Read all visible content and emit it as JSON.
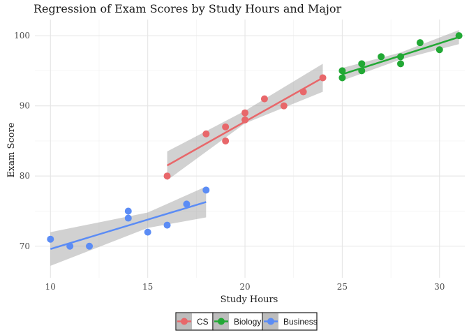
{
  "chart_data": {
    "type": "scatter",
    "title": "Regression of Exam Scores by Study Hours and Major",
    "xlabel": "Study Hours",
    "ylabel": "Exam Score",
    "xlim": [
      9.2,
      31.3
    ],
    "ylim": [
      65.5,
      102.3
    ],
    "x_ticks": [
      10,
      15,
      20,
      25,
      30
    ],
    "y_ticks": [
      70,
      80,
      90,
      100
    ],
    "grid": true,
    "legend_position": "bottom",
    "series": [
      {
        "name": "CS",
        "color": "#E8676A",
        "points": [
          {
            "x": 16,
            "y": 80
          },
          {
            "x": 18,
            "y": 86
          },
          {
            "x": 19,
            "y": 87
          },
          {
            "x": 19,
            "y": 85
          },
          {
            "x": 20,
            "y": 89
          },
          {
            "x": 20,
            "y": 88
          },
          {
            "x": 21,
            "y": 91
          },
          {
            "x": 22,
            "y": 90
          },
          {
            "x": 23,
            "y": 92
          },
          {
            "x": 24,
            "y": 94
          }
        ],
        "fit": {
          "x_start": 16,
          "x_end": 24,
          "y_start": 81.5,
          "y_end": 94.0
        },
        "ci_upper": [
          {
            "x": 16,
            "y": 83.5
          },
          {
            "x": 20,
            "y": 89.3
          },
          {
            "x": 24,
            "y": 96.0
          }
        ],
        "ci_lower": [
          {
            "x": 16,
            "y": 79.4
          },
          {
            "x": 20,
            "y": 87.5
          },
          {
            "x": 24,
            "y": 92.0
          }
        ]
      },
      {
        "name": "Biology",
        "color": "#22A835",
        "points": [
          {
            "x": 25,
            "y": 95
          },
          {
            "x": 25,
            "y": 94
          },
          {
            "x": 26,
            "y": 96
          },
          {
            "x": 26,
            "y": 95
          },
          {
            "x": 27,
            "y": 97
          },
          {
            "x": 28,
            "y": 97
          },
          {
            "x": 28,
            "y": 96
          },
          {
            "x": 29,
            "y": 99
          },
          {
            "x": 30,
            "y": 98
          },
          {
            "x": 31,
            "y": 100
          }
        ],
        "fit": {
          "x_start": 25,
          "x_end": 31,
          "y_start": 94.5,
          "y_end": 99.8
        },
        "ci_upper": [
          {
            "x": 25,
            "y": 95.4
          },
          {
            "x": 28,
            "y": 97.6
          },
          {
            "x": 31,
            "y": 100.8
          }
        ],
        "ci_lower": [
          {
            "x": 25,
            "y": 93.6
          },
          {
            "x": 28,
            "y": 96.6
          },
          {
            "x": 31,
            "y": 98.8
          }
        ]
      },
      {
        "name": "Business",
        "color": "#5B8CF5",
        "points": [
          {
            "x": 10,
            "y": 71
          },
          {
            "x": 11,
            "y": 70
          },
          {
            "x": 12,
            "y": 70
          },
          {
            "x": 14,
            "y": 75
          },
          {
            "x": 14,
            "y": 74
          },
          {
            "x": 15,
            "y": 72
          },
          {
            "x": 16,
            "y": 73
          },
          {
            "x": 17,
            "y": 76
          },
          {
            "x": 18,
            "y": 78
          }
        ],
        "fit": {
          "x_start": 10,
          "x_end": 18,
          "y_start": 69.6,
          "y_end": 76.3
        },
        "ci_upper": [
          {
            "x": 10,
            "y": 72.0
          },
          {
            "x": 15,
            "y": 74.8
          },
          {
            "x": 18,
            "y": 78.5
          }
        ],
        "ci_lower": [
          {
            "x": 10,
            "y": 67.2
          },
          {
            "x": 15,
            "y": 72.6
          },
          {
            "x": 18,
            "y": 74.1
          }
        ]
      }
    ]
  }
}
